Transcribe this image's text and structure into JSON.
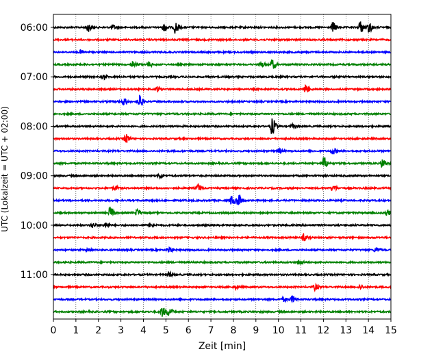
{
  "chart_data": {
    "type": "line",
    "title": "",
    "xlabel": "Zeit  [min]",
    "ylabel": "UTC (Lokalzeit = UTC + 02:00)",
    "xlim": [
      0,
      15
    ],
    "x_ticks": [
      0,
      1,
      2,
      3,
      4,
      5,
      6,
      7,
      8,
      9,
      10,
      11,
      12,
      13,
      14,
      15
    ],
    "x_tick_labels": [
      "0",
      "1",
      "2",
      "3",
      "4",
      "5",
      "6",
      "7",
      "8",
      "9",
      "10",
      "11",
      "12",
      "13",
      "14",
      "15"
    ],
    "y_tick_labels": [
      "06:00",
      "07:00",
      "08:00",
      "09:00",
      "10:00",
      "11:00"
    ],
    "y_tick_rows": [
      0,
      4,
      8,
      12,
      16,
      20
    ],
    "row_minutes": 15,
    "grid_x": true,
    "grid_y": false,
    "colors": [
      "#000000",
      "#ff0000",
      "#0000ff",
      "#008000"
    ],
    "rows": [
      {
        "start": "06:00",
        "color": "#000000",
        "events": [
          {
            "t": 1.5,
            "a": 0.7
          },
          {
            "t": 2.6,
            "a": 0.35
          },
          {
            "t": 4.9,
            "a": 0.6
          },
          {
            "t": 5.4,
            "a": 0.9
          },
          {
            "t": 12.4,
            "a": 0.8
          },
          {
            "t": 13.6,
            "a": 1.0
          },
          {
            "t": 14.0,
            "a": 0.8
          }
        ]
      },
      {
        "start": "06:15",
        "color": "#ff0000",
        "events": []
      },
      {
        "start": "06:30",
        "color": "#0000ff",
        "events": [
          {
            "t": 1.2,
            "a": 0.25
          }
        ]
      },
      {
        "start": "06:45",
        "color": "#008000",
        "events": [
          {
            "t": 3.5,
            "a": 0.55
          },
          {
            "t": 4.2,
            "a": 0.4
          },
          {
            "t": 9.2,
            "a": 0.45
          },
          {
            "t": 9.7,
            "a": 0.75
          }
        ]
      },
      {
        "start": "07:00",
        "color": "#000000",
        "events": [
          {
            "t": 2.2,
            "a": 0.35
          }
        ]
      },
      {
        "start": "07:15",
        "color": "#ff0000",
        "events": [
          {
            "t": 4.6,
            "a": 0.4
          },
          {
            "t": 11.2,
            "a": 0.6
          }
        ]
      },
      {
        "start": "07:30",
        "color": "#0000ff",
        "events": [
          {
            "t": 3.1,
            "a": 0.5
          },
          {
            "t": 3.8,
            "a": 1.0
          }
        ]
      },
      {
        "start": "07:45",
        "color": "#008000",
        "events": []
      },
      {
        "start": "08:00",
        "color": "#000000",
        "events": [
          {
            "t": 9.7,
            "a": 1.3
          },
          {
            "t": 10.6,
            "a": 0.3
          }
        ]
      },
      {
        "start": "08:15",
        "color": "#ff0000",
        "events": [
          {
            "t": 3.2,
            "a": 0.7
          }
        ]
      },
      {
        "start": "08:30",
        "color": "#0000ff",
        "events": [
          {
            "t": 10.0,
            "a": 0.35
          },
          {
            "t": 12.4,
            "a": 0.45
          }
        ]
      },
      {
        "start": "08:45",
        "color": "#008000",
        "events": [
          {
            "t": 12.0,
            "a": 1.0
          },
          {
            "t": 14.6,
            "a": 0.7
          }
        ]
      },
      {
        "start": "09:00",
        "color": "#000000",
        "events": [
          {
            "t": 4.7,
            "a": 0.4
          }
        ]
      },
      {
        "start": "09:15",
        "color": "#ff0000",
        "events": [
          {
            "t": 2.7,
            "a": 0.3
          },
          {
            "t": 6.4,
            "a": 0.6
          },
          {
            "t": 12.4,
            "a": 0.5
          }
        ]
      },
      {
        "start": "09:30",
        "color": "#0000ff",
        "events": [
          {
            "t": 7.9,
            "a": 0.7
          },
          {
            "t": 8.2,
            "a": 1.0
          }
        ]
      },
      {
        "start": "09:45",
        "color": "#008000",
        "events": [
          {
            "t": 2.5,
            "a": 0.9
          },
          {
            "t": 3.7,
            "a": 0.55
          },
          {
            "t": 14.8,
            "a": 0.4
          }
        ]
      },
      {
        "start": "10:00",
        "color": "#000000",
        "events": [
          {
            "t": 1.7,
            "a": 0.4
          },
          {
            "t": 2.3,
            "a": 0.45
          },
          {
            "t": 4.3,
            "a": 0.35
          }
        ]
      },
      {
        "start": "10:15",
        "color": "#ff0000",
        "events": [
          {
            "t": 11.1,
            "a": 0.5
          }
        ]
      },
      {
        "start": "10:30",
        "color": "#0000ff",
        "events": [
          {
            "t": 1.5,
            "a": 0.3
          },
          {
            "t": 5.1,
            "a": 0.45
          },
          {
            "t": 14.3,
            "a": 0.4
          }
        ]
      },
      {
        "start": "10:45",
        "color": "#008000",
        "events": [
          {
            "t": 10.9,
            "a": 0.4
          }
        ]
      },
      {
        "start": "11:00",
        "color": "#000000",
        "events": [
          {
            "t": 5.1,
            "a": 0.4
          }
        ]
      },
      {
        "start": "11:15",
        "color": "#ff0000",
        "events": [
          {
            "t": 8.1,
            "a": 0.25
          },
          {
            "t": 11.6,
            "a": 0.45
          },
          {
            "t": 13.6,
            "a": 0.3
          }
        ]
      },
      {
        "start": "11:30",
        "color": "#0000ff",
        "events": [
          {
            "t": 10.2,
            "a": 0.3
          },
          {
            "t": 10.6,
            "a": 0.5
          }
        ]
      },
      {
        "start": "11:45",
        "color": "#008000",
        "events": [
          {
            "t": 4.8,
            "a": 0.8
          },
          {
            "t": 5.1,
            "a": 0.6
          }
        ]
      }
    ]
  }
}
